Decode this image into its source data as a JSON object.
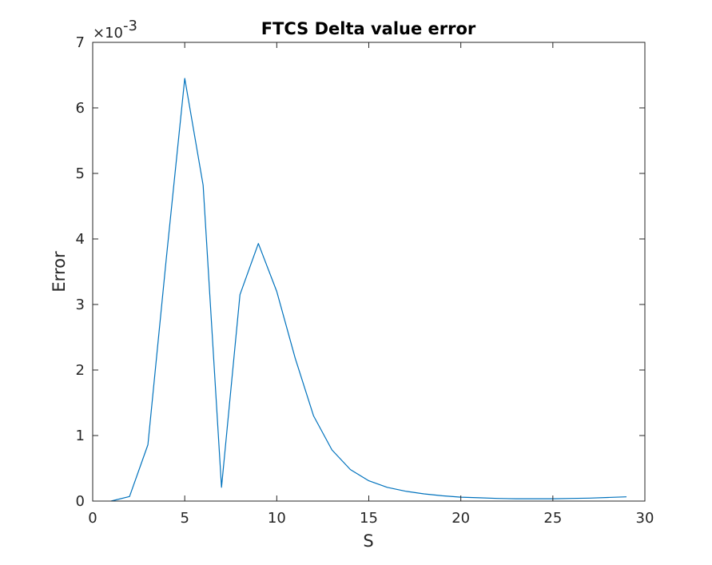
{
  "chart_data": {
    "type": "line",
    "title": "FTCS Delta value error",
    "xlabel": "S",
    "ylabel": "Error",
    "y_exponent_base": "×10",
    "y_exponent_power": "-3",
    "xlim": [
      0,
      30
    ],
    "ylim": [
      0,
      7
    ],
    "x_ticks": [
      0,
      5,
      10,
      15,
      20,
      25,
      30
    ],
    "y_ticks": [
      0,
      1,
      2,
      3,
      4,
      5,
      6,
      7
    ],
    "x_tick_labels": [
      "0",
      "5",
      "10",
      "15",
      "20",
      "25",
      "30"
    ],
    "y_tick_labels": [
      "0",
      "1",
      "2",
      "3",
      "4",
      "5",
      "6",
      "7"
    ],
    "grid": false,
    "series": [
      {
        "color": "#0072BD",
        "x": [
          1,
          2,
          3,
          4,
          5,
          6,
          7,
          8,
          9,
          10,
          11,
          12,
          13,
          14,
          15,
          16,
          17,
          18,
          19,
          20,
          21,
          22,
          23,
          24,
          25,
          26,
          27,
          28,
          29
        ],
        "y": [
          0.0,
          0.07,
          0.86,
          3.7,
          6.45,
          4.82,
          0.21,
          3.15,
          3.93,
          3.2,
          2.18,
          1.3,
          0.78,
          0.48,
          0.31,
          0.21,
          0.15,
          0.11,
          0.08,
          0.06,
          0.05,
          0.04,
          0.035,
          0.035,
          0.035,
          0.04,
          0.045,
          0.055,
          0.065
        ]
      }
    ]
  }
}
